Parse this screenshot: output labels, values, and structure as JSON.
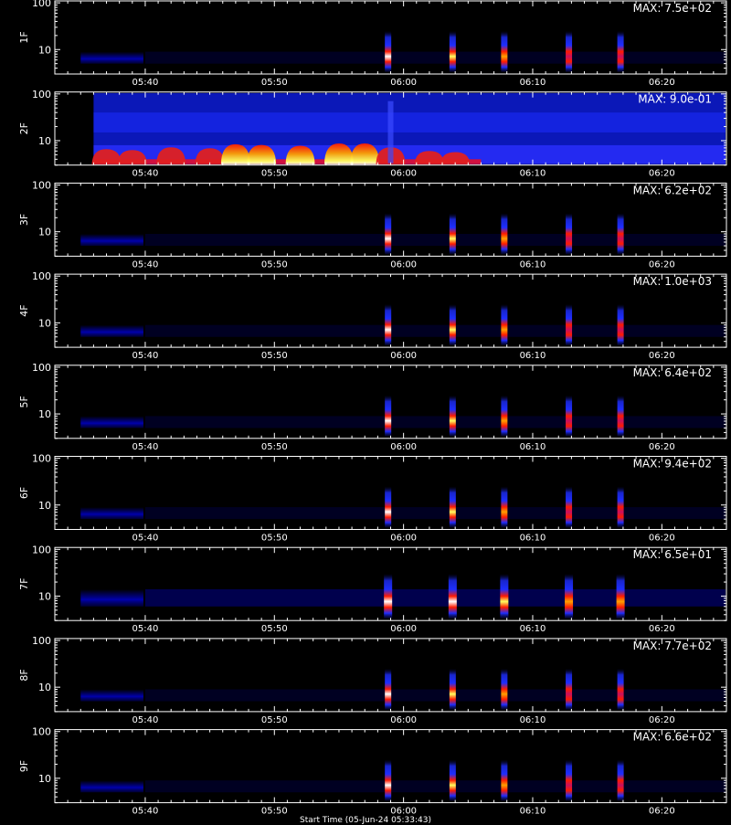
{
  "chart_data": {
    "type": "heatmap",
    "x_unit": "UT (hh:mm)",
    "xlim": [
      "05:33",
      "06:25"
    ],
    "x_ticks": [
      "05:40",
      "05:50",
      "06:00",
      "06:10",
      "06:20"
    ],
    "y_scale": "log",
    "ylim": [
      3,
      110
    ],
    "y_tick_labels": [
      "10",
      "100"
    ],
    "x_title": "Start Time (05-Jun-24 05:33:43)",
    "colormap": [
      "#000000",
      "#0a0a5a",
      "#1e2eff",
      "#c81060",
      "#ff1a00",
      "#ffa000",
      "#ffff60",
      "#ffffff"
    ],
    "panels": [
      {
        "label": "1F",
        "max_text": "MAX: 7.5e+02",
        "kind": "bursts"
      },
      {
        "label": "2F",
        "max_text": "MAX: 9.0e-01",
        "kind": "noisy"
      },
      {
        "label": "3F",
        "max_text": "MAX: 6.2e+02",
        "kind": "bursts"
      },
      {
        "label": "4F",
        "max_text": "MAX: 1.0e+03",
        "kind": "bursts"
      },
      {
        "label": "5F",
        "max_text": "MAX: 6.4e+02",
        "kind": "bursts"
      },
      {
        "label": "6F",
        "max_text": "MAX: 9.4e+02",
        "kind": "bursts"
      },
      {
        "label": "7F",
        "max_text": "MAX: 6.5e+01",
        "kind": "bursts_strong"
      },
      {
        "label": "8F",
        "max_text": "MAX: 7.7e+02",
        "kind": "bursts"
      },
      {
        "label": "9F",
        "max_text": "MAX: 6.6e+02",
        "kind": "bursts"
      }
    ],
    "bursts": [
      {
        "time": "05:59",
        "intensity": 1.0
      },
      {
        "time": "06:04",
        "intensity": 0.8
      },
      {
        "time": "06:08",
        "intensity": 0.6
      },
      {
        "time": "06:13",
        "intensity": 0.5
      },
      {
        "time": "06:17",
        "intensity": 0.45
      }
    ],
    "noisy_2f_humps": [
      {
        "time": "05:37",
        "intensity": 0.6
      },
      {
        "time": "05:39",
        "intensity": 0.55
      },
      {
        "time": "05:42",
        "intensity": 0.7
      },
      {
        "time": "05:45",
        "intensity": 0.65
      },
      {
        "time": "05:47",
        "intensity": 0.9
      },
      {
        "time": "05:49",
        "intensity": 0.85
      },
      {
        "time": "05:52",
        "intensity": 0.8
      },
      {
        "time": "05:55",
        "intensity": 0.95
      },
      {
        "time": "05:57",
        "intensity": 0.95
      },
      {
        "time": "05:59",
        "intensity": 0.7
      },
      {
        "time": "06:02",
        "intensity": 0.5
      },
      {
        "time": "06:04",
        "intensity": 0.45
      }
    ]
  }
}
